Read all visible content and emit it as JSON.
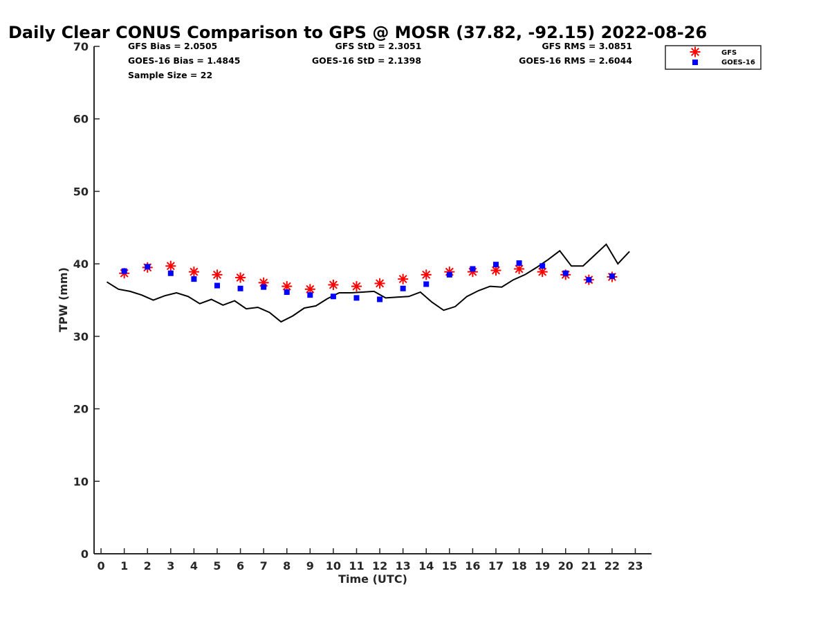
{
  "chart_data": {
    "type": "scatter",
    "title": "Daily Clear CONUS Comparison to GPS @ MOSR (37.82, -92.15) 2022-08-26",
    "xlabel": "Time (UTC)",
    "ylabel": "TPW (mm)",
    "xlim": [
      -0.3,
      23.7
    ],
    "ylim": [
      0,
      70
    ],
    "xticks": [
      0,
      1,
      2,
      3,
      4,
      5,
      6,
      7,
      8,
      9,
      10,
      11,
      12,
      13,
      14,
      15,
      16,
      17,
      18,
      19,
      20,
      21,
      22,
      23
    ],
    "yticks": [
      0,
      10,
      20,
      30,
      40,
      50,
      60,
      70
    ],
    "grid": false,
    "legend_position": "top-right",
    "stats": [
      "GFS Bias = 2.0505",
      "GFS StD = 2.3051",
      "GFS RMS = 3.0851",
      "GOES-16 Bias = 1.4845",
      "GOES-16 StD = 2.1398",
      "GOES-16 RMS = 2.6044",
      "Sample Size = 22"
    ],
    "series": [
      {
        "name": "GFS",
        "marker": "asterisk",
        "color": "#ff0000",
        "x": [
          1,
          2,
          3,
          4,
          5,
          6,
          7,
          8,
          9,
          10,
          11,
          12,
          13,
          14,
          15,
          16,
          17,
          18,
          19,
          20,
          21,
          22
        ],
        "y": [
          38.7,
          39.5,
          39.7,
          38.9,
          38.5,
          38.1,
          37.4,
          36.9,
          36.5,
          37.1,
          36.9,
          37.3,
          37.9,
          38.5,
          38.9,
          38.9,
          39.1,
          39.3,
          38.9,
          38.5,
          37.8,
          38.2
        ]
      },
      {
        "name": "GOES-16",
        "marker": "square",
        "color": "#0000ff",
        "x": [
          1,
          2,
          3,
          4,
          5,
          6,
          7,
          8,
          9,
          10,
          11,
          12,
          13,
          14,
          15,
          16,
          17,
          18,
          19,
          20,
          21,
          22
        ],
        "y": [
          39.0,
          39.6,
          38.7,
          37.9,
          37.0,
          36.6,
          36.8,
          36.1,
          35.7,
          35.5,
          35.3,
          35.1,
          36.6,
          37.2,
          38.5,
          39.3,
          39.9,
          40.1,
          39.7,
          38.7,
          37.8,
          38.3
        ]
      },
      {
        "marker": "line",
        "color": "#000000",
        "x": [
          0.25,
          0.75,
          1.25,
          1.75,
          2.25,
          2.75,
          3.25,
          3.75,
          4.25,
          4.75,
          5.25,
          5.75,
          6.25,
          6.75,
          7.25,
          7.75,
          8.25,
          8.75,
          9.25,
          9.75,
          10.25,
          10.75,
          11.25,
          11.75,
          12.25,
          12.75,
          13.25,
          13.75,
          14.25,
          14.75,
          15.25,
          15.75,
          16.25,
          16.75,
          17.25,
          17.75,
          18.25,
          18.75,
          19.25,
          19.75,
          20.25,
          20.75,
          21.25,
          21.75,
          22.25,
          22.75
        ],
        "y": [
          37.5,
          36.5,
          36.2,
          35.7,
          35.0,
          35.6,
          36.0,
          35.5,
          34.5,
          35.1,
          34.3,
          34.9,
          33.8,
          34.0,
          33.3,
          32.0,
          32.8,
          33.9,
          34.2,
          35.2,
          36.0,
          36.0,
          36.1,
          36.2,
          35.3,
          35.4,
          35.5,
          36.1,
          34.7,
          33.6,
          34.1,
          35.5,
          36.3,
          36.9,
          36.8,
          37.8,
          38.5,
          39.5,
          40.6,
          41.8,
          39.7,
          39.7,
          41.2,
          42.7,
          40.0,
          41.7
        ]
      }
    ]
  }
}
